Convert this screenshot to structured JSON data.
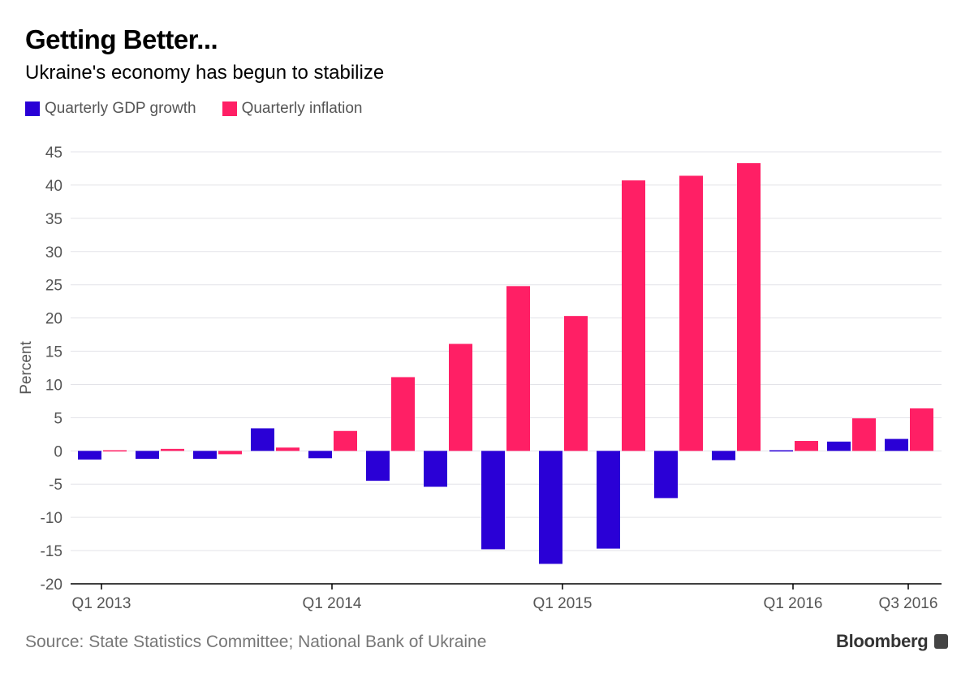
{
  "title": "Getting Better...",
  "subtitle": "Ukraine's economy has begun to stabilize",
  "source": "Source: State Statistics Committee; National Bank of Ukraine",
  "logo": "Bloomberg",
  "chart_data": {
    "type": "bar",
    "ylabel": "Percent",
    "ylim": [
      -20,
      45
    ],
    "yticks": [
      45,
      40,
      35,
      30,
      25,
      20,
      15,
      10,
      5,
      0,
      -5,
      -10,
      -15,
      -20
    ],
    "grid": true,
    "legend": "top-left",
    "categories": [
      "Q1 2013",
      "Q2 2013",
      "Q3 2013",
      "Q4 2013",
      "Q1 2014",
      "Q2 2014",
      "Q3 2014",
      "Q4 2014",
      "Q1 2015",
      "Q2 2015",
      "Q3 2015",
      "Q4 2015",
      "Q1 2016",
      "Q2 2016",
      "Q3 2016"
    ],
    "xtick_labels": [
      "Q1 2013",
      "Q1 2014",
      "Q1 2015",
      "Q1 2016",
      "Q3 2016"
    ],
    "series": [
      {
        "name": "Quarterly GDP growth",
        "color": "#2a00d6",
        "values": [
          -1.3,
          -1.2,
          -1.2,
          3.4,
          -1.1,
          -4.5,
          -5.4,
          -14.8,
          -17.0,
          -14.7,
          -7.1,
          -1.4,
          0.1,
          1.4,
          1.8
        ]
      },
      {
        "name": "Quarterly inflation",
        "color": "#ff1f65",
        "values": [
          0.1,
          0.3,
          -0.5,
          0.5,
          3.0,
          11.1,
          16.1,
          24.8,
          20.3,
          40.7,
          41.4,
          43.3,
          1.5,
          4.9,
          6.4
        ]
      }
    ]
  }
}
